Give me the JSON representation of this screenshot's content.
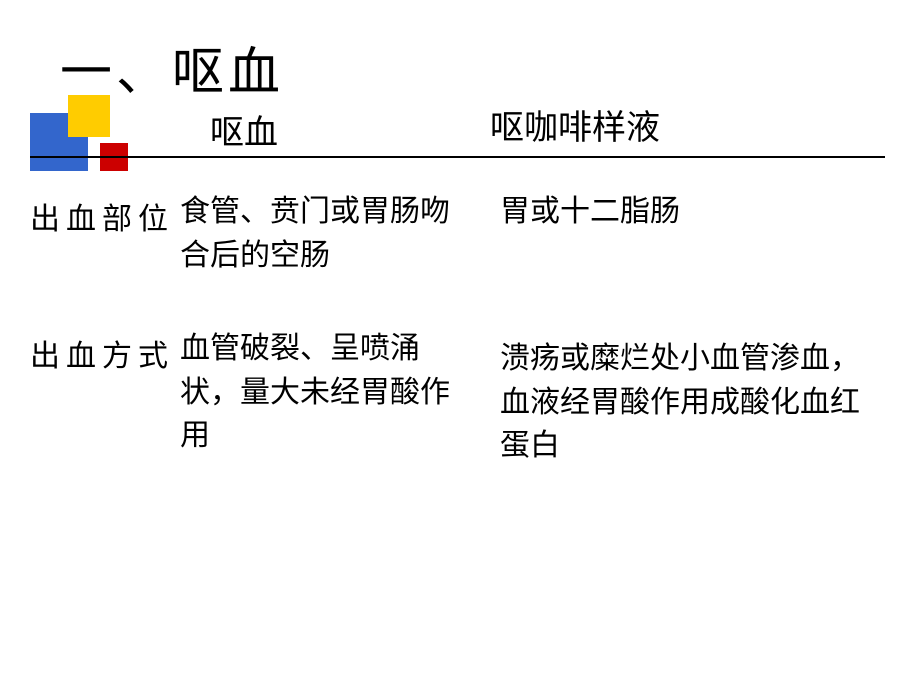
{
  "slide": {
    "title": "一、呕血",
    "logo": {
      "blue_color": "#3366cc",
      "yellow_color": "#ffcc00",
      "red_color": "#cc0000"
    },
    "headers": {
      "col1": "呕血",
      "col2": "呕咖啡样液"
    },
    "rows": [
      {
        "label": "出血部位",
        "col1": "食管、贲门或胃肠吻合后的空肠",
        "col2": "胃或十二脂肠"
      },
      {
        "label": "出血方式",
        "col1": "血管破裂、呈喷涌状，量大未经胃酸作用",
        "col2": "溃疡或糜烂处小血管渗血，血液经胃酸作用成酸化血红蛋白"
      }
    ],
    "styling": {
      "background_color": "#ffffff",
      "text_color": "#000000",
      "title_fontsize": 52,
      "header_fontsize": 34,
      "body_fontsize": 30,
      "divider_color": "#000000"
    }
  }
}
